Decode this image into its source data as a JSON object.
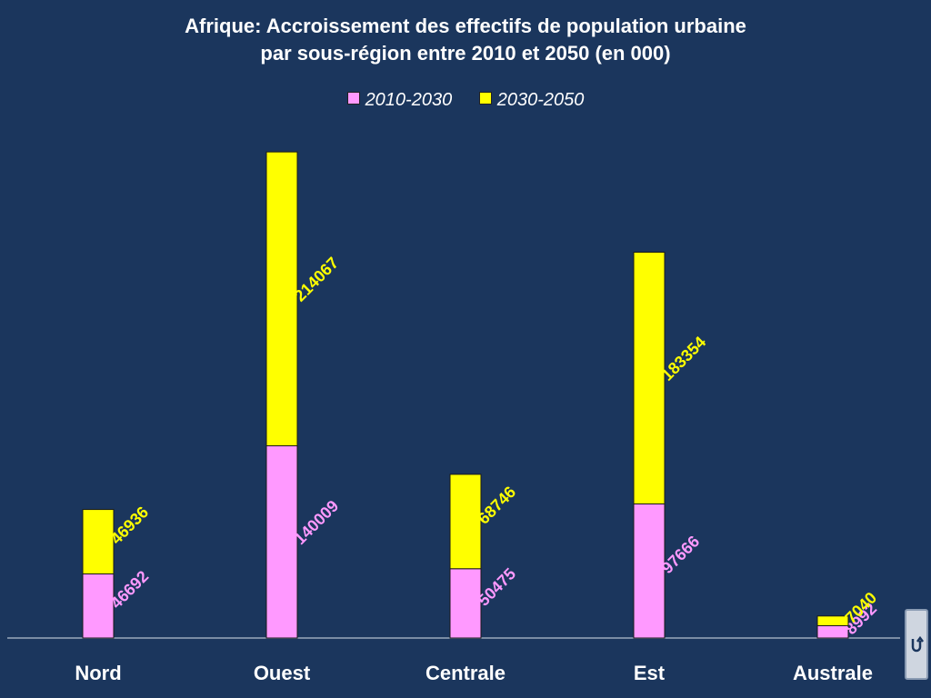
{
  "title_line1": "Afrique: Accroissement des effectifs de population urbaine",
  "title_line2": "par sous-région entre 2010 et 2050 (en 000)",
  "legend": {
    "s1": "2010-2030",
    "s2": "2030-2050"
  },
  "colors": {
    "background": "#1b365d",
    "series1": "#ff99ff",
    "series2": "#ffff00",
    "axis": "#9aa8bb"
  },
  "nav_button_icon": "return-arrow-icon",
  "chart_data": {
    "type": "bar",
    "stacked": true,
    "title": "Afrique: Accroissement des effectifs de population urbaine par sous-région entre 2010 et 2050 (en 000)",
    "categories": [
      "Nord",
      "Ouest",
      "Centrale",
      "Est",
      "Australe"
    ],
    "series": [
      {
        "name": "2010-2030",
        "color": "#ff99ff",
        "values": [
          46692,
          140009,
          50475,
          97666,
          8992
        ]
      },
      {
        "name": "2030-2050",
        "color": "#ffff00",
        "values": [
          46936,
          214067,
          68746,
          183354,
          7040
        ]
      }
    ],
    "ylim": [
      0,
      380000
    ],
    "grid": false,
    "legend_position": "top-center",
    "data_labels": true
  }
}
